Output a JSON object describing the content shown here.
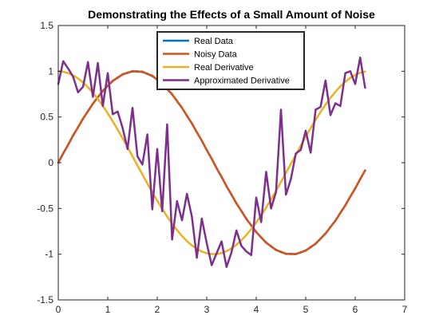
{
  "chart_data": {
    "type": "line",
    "title": "Demonstrating the Effects of a Small Amount of Noise",
    "xlabel": "",
    "ylabel": "",
    "xlim": [
      0,
      7
    ],
    "ylim": [
      -1.5,
      1.5
    ],
    "xticks": [
      "0",
      "1",
      "2",
      "3",
      "4",
      "5",
      "6",
      "7"
    ],
    "yticks": [
      "1.5",
      "1",
      "0.5",
      "0",
      "-0.5",
      "-1",
      "-1.5"
    ],
    "grid": false,
    "legend_position": "top-center",
    "x": [
      0,
      0.1,
      0.2,
      0.3,
      0.4,
      0.5,
      0.6,
      0.7,
      0.8,
      0.9,
      1.0,
      1.1,
      1.2,
      1.3,
      1.4,
      1.5,
      1.6,
      1.7,
      1.8,
      1.9,
      2.0,
      2.1,
      2.2,
      2.3,
      2.4,
      2.5,
      2.6,
      2.7,
      2.8,
      2.9,
      3.0,
      3.1,
      3.2,
      3.3,
      3.4,
      3.5,
      3.6,
      3.7,
      3.8,
      3.9,
      4.0,
      4.1,
      4.2,
      4.3,
      4.4,
      4.5,
      4.6,
      4.7,
      4.8,
      4.9,
      5.0,
      5.1,
      5.2,
      5.3,
      5.4,
      5.5,
      5.6,
      5.7,
      5.8,
      5.9,
      6.0,
      6.1,
      6.2
    ],
    "series": [
      {
        "name": "Real Data",
        "color": "#0072BD",
        "values": [
          0,
          0.0998,
          0.1987,
          0.2955,
          0.3894,
          0.4794,
          0.5646,
          0.6442,
          0.7174,
          0.7833,
          0.8415,
          0.8912,
          0.932,
          0.9636,
          0.9854,
          0.9975,
          0.9996,
          0.9917,
          0.9738,
          0.9463,
          0.9093,
          0.8632,
          0.8085,
          0.7457,
          0.6755,
          0.5985,
          0.5155,
          0.4274,
          0.335,
          0.2392,
          0.1411,
          0.0416,
          -0.0584,
          -0.1577,
          -0.2555,
          -0.3508,
          -0.4425,
          -0.5298,
          -0.6119,
          -0.6878,
          -0.7568,
          -0.8183,
          -0.8716,
          -0.9162,
          -0.9516,
          -0.9775,
          -0.9937,
          -0.9999,
          -0.9962,
          -0.9825,
          -0.9589,
          -0.9258,
          -0.8835,
          -0.8323,
          -0.7728,
          -0.7055,
          -0.6313,
          -0.5507,
          -0.4646,
          -0.3739,
          -0.2794,
          -0.1822,
          -0.0831
        ]
      },
      {
        "name": "Noisy Data",
        "color": "#D95319",
        "values": [
          0.002,
          0.104,
          0.193,
          0.301,
          0.386,
          0.484,
          0.561,
          0.648,
          0.714,
          0.788,
          0.839,
          0.897,
          0.927,
          0.968,
          0.981,
          1.002,
          0.995,
          0.997,
          0.969,
          0.952,
          0.905,
          0.868,
          0.803,
          0.751,
          0.671,
          0.603,
          0.511,
          0.432,
          0.331,
          0.244,
          0.136,
          0.047,
          -0.063,
          -0.152,
          -0.26,
          -0.346,
          -0.447,
          -0.525,
          -0.616,
          -0.683,
          -0.761,
          -0.814,
          -0.876,
          -0.912,
          -0.956,
          -0.973,
          -0.998,
          -0.995,
          -1.001,
          -0.978,
          -0.963,
          -0.921,
          -0.888,
          -0.828,
          -0.777,
          -0.701,
          -0.636,
          -0.546,
          -0.469,
          -0.369,
          -0.284,
          -0.177,
          -0.087
        ]
      },
      {
        "name": "Real Derivative",
        "color": "#EDB120",
        "values": [
          1.0,
          0.995,
          0.9801,
          0.9553,
          0.9211,
          0.8776,
          0.8253,
          0.7648,
          0.6967,
          0.6216,
          0.5403,
          0.4536,
          0.3624,
          0.2675,
          0.17,
          0.0707,
          -0.0292,
          -0.1288,
          -0.2272,
          -0.3233,
          -0.4161,
          -0.5048,
          -0.5885,
          -0.6663,
          -0.7374,
          -0.8011,
          -0.8569,
          -0.9041,
          -0.9422,
          -0.971,
          -0.99,
          -0.9991,
          -0.9983,
          -0.9875,
          -0.9668,
          -0.9365,
          -0.8968,
          -0.8481,
          -0.791,
          -0.7259,
          -0.6536,
          -0.5748,
          -0.4903,
          -0.4008,
          -0.3073,
          -0.2108,
          -0.1122,
          -0.0124,
          0.0875,
          0.1865,
          0.2837,
          0.378,
          0.4685,
          0.5544,
          0.6347,
          0.7087,
          0.7756,
          0.8347,
          0.8855,
          0.9275,
          0.9602,
          0.9833,
          0.9965
        ]
      },
      {
        "name": "Approximated Derivative",
        "color": "#7E2F8E",
        "values": [
          0.86,
          1.11,
          1.03,
          0.94,
          0.77,
          0.83,
          1.1,
          0.72,
          1.09,
          0.62,
          0.98,
          0.53,
          0.56,
          0.38,
          0.15,
          0.6,
          0.07,
          -0.02,
          0.31,
          -0.51,
          0.15,
          -0.53,
          0.42,
          -0.84,
          -0.42,
          -0.63,
          -0.34,
          -0.59,
          -1.04,
          -0.61,
          -0.88,
          -1.12,
          -0.99,
          -0.86,
          -1.14,
          -0.98,
          -0.74,
          -0.91,
          -0.97,
          -1.01,
          -0.38,
          -0.65,
          -0.1,
          -0.5,
          -0.32,
          0.58,
          -0.35,
          -0.18,
          0.1,
          0.14,
          0.35,
          0.11,
          0.58,
          0.61,
          0.9,
          0.52,
          0.65,
          0.62,
          0.98,
          1.0,
          0.86,
          1.15,
          0.82
        ]
      }
    ]
  }
}
